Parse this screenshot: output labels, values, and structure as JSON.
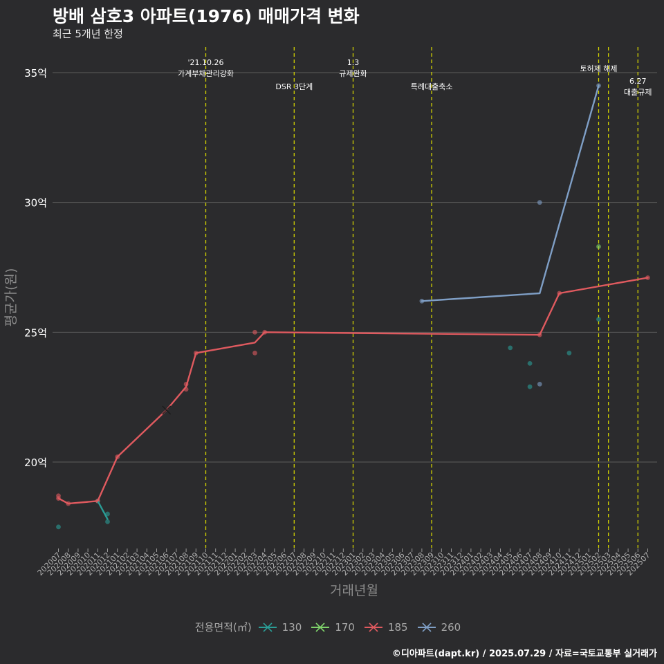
{
  "title": "방배 삼호3 아파트(1976) 매매가격 변화",
  "subtitle": "최근 5개년 한정",
  "caption": "©디아파트(dapt.kr) / 2025.07.29 / 자료=국토교통부 실거래가",
  "legend": {
    "title": "전용면적(㎡)",
    "position": "bottom",
    "items": [
      {
        "label": "130",
        "color": "#2a9d96"
      },
      {
        "label": "170",
        "color": "#7fd36b"
      },
      {
        "label": "185",
        "color": "#e05a5f"
      },
      {
        "label": "260",
        "color": "#7f9fc6"
      }
    ]
  },
  "chart_data": {
    "type": "line",
    "xlabel": "거래년월",
    "ylabel": "평균가(원)",
    "ylim": [
      16.8,
      36.3
    ],
    "y_ticks": [
      {
        "value": 20,
        "label": "20억"
      },
      {
        "value": 25,
        "label": "25억"
      },
      {
        "value": 30,
        "label": "30억"
      },
      {
        "value": 35,
        "label": "35억"
      }
    ],
    "grid": true,
    "categories": [
      "202007",
      "202008",
      "202009",
      "202010",
      "202011",
      "202012",
      "202101",
      "202102",
      "202103",
      "202104",
      "202105",
      "202106",
      "202107",
      "202108",
      "202109",
      "202110",
      "202111",
      "202112",
      "202201",
      "202202",
      "202203",
      "202204",
      "202205",
      "202206",
      "202207",
      "202208",
      "202209",
      "202210",
      "202211",
      "202212",
      "202301",
      "202302",
      "202303",
      "202304",
      "202305",
      "202306",
      "202307",
      "202308",
      "202309",
      "202310",
      "202311",
      "202312",
      "202401",
      "202402",
      "202403",
      "202404",
      "202405",
      "202406",
      "202407",
      "202408",
      "202409",
      "202410",
      "202411",
      "202412",
      "202501",
      "202502",
      "202503",
      "202504",
      "202505",
      "202506",
      "202507"
    ],
    "events": [
      {
        "x": "202110",
        "label": "'21.10.26\n가계부채관리강화",
        "label_level": 1
      },
      {
        "x": "202207",
        "label": "DSR 3단계",
        "label_level": 2
      },
      {
        "x": "202301",
        "label": "1.3\n규제완화",
        "label_level": 1
      },
      {
        "x": "202309",
        "label": "특례대출축소",
        "label_level": 2
      },
      {
        "x": "202502",
        "label": "토허제 해제",
        "label_level": 1
      },
      {
        "x": "202503",
        "label": "",
        "label_level": 1
      },
      {
        "x": "202506",
        "label": "6.27\n대출규제",
        "label_level": 3
      }
    ],
    "event_color": "#d4d400",
    "series": [
      {
        "name": "130",
        "color": "#2a9d96",
        "line": [
          [
            "202011",
            18.5
          ],
          [
            "202012",
            17.8
          ]
        ],
        "points": [
          [
            "202007",
            17.5
          ],
          [
            "202011",
            18.5
          ],
          [
            "202012",
            18.0
          ],
          [
            "202012",
            17.7
          ],
          [
            "202405",
            24.4
          ],
          [
            "202407",
            23.8
          ],
          [
            "202407",
            22.9
          ],
          [
            "202411",
            24.2
          ],
          [
            "202502",
            25.5
          ]
        ]
      },
      {
        "name": "170",
        "color": "#7fd36b",
        "line": [],
        "points": [
          [
            "202502",
            28.3
          ]
        ]
      },
      {
        "name": "185",
        "color": "#e05a5f",
        "line": [
          [
            "202007",
            18.6
          ],
          [
            "202008",
            18.4
          ],
          [
            "202011",
            18.5
          ],
          [
            "202101",
            20.2
          ],
          [
            "202106",
            22.0
          ],
          [
            "202108",
            22.9
          ],
          [
            "202109",
            24.2
          ],
          [
            "202203",
            24.6
          ],
          [
            "202204",
            25.0
          ],
          [
            "202408",
            24.9
          ],
          [
            "202410",
            26.5
          ],
          [
            "202507",
            27.1
          ]
        ],
        "points": [
          [
            "202007",
            18.7
          ],
          [
            "202007",
            18.6
          ],
          [
            "202008",
            18.4
          ],
          [
            "202011",
            18.5
          ],
          [
            "202101",
            20.2
          ],
          [
            "202108",
            23.0
          ],
          [
            "202108",
            22.8
          ],
          [
            "202109",
            24.2
          ],
          [
            "202203",
            25.0
          ],
          [
            "202203",
            24.2
          ],
          [
            "202204",
            25.0
          ],
          [
            "202408",
            24.9
          ],
          [
            "202410",
            26.5
          ],
          [
            "202507",
            27.1
          ]
        ],
        "crosses": [
          [
            "202106",
            22.0
          ]
        ]
      },
      {
        "name": "260",
        "color": "#7f9fc6",
        "line": [
          [
            "202308",
            26.2
          ],
          [
            "202408",
            26.5
          ],
          [
            "202502",
            34.5
          ]
        ],
        "points": [
          [
            "202308",
            26.2
          ],
          [
            "202408",
            30.0
          ],
          [
            "202408",
            23.0
          ],
          [
            "202502",
            34.5
          ]
        ]
      }
    ]
  }
}
